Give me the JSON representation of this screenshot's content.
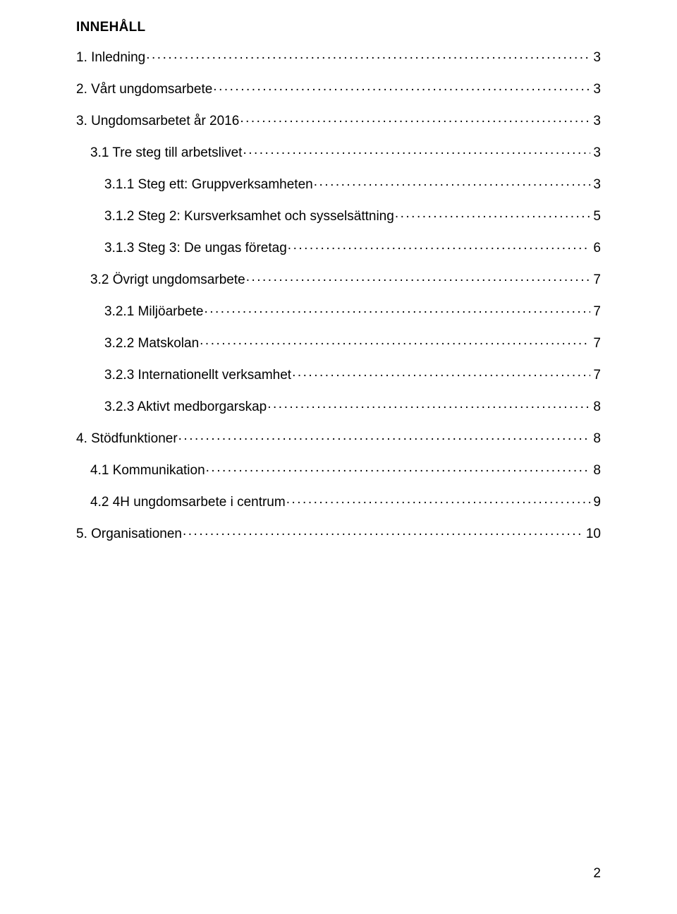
{
  "heading": "INNEHÅLL",
  "toc": [
    {
      "label": "1. Inledning",
      "page": "3",
      "indent": 0
    },
    {
      "label": "2. Vårt ungdomsarbete",
      "page": "3",
      "indent": 0
    },
    {
      "label": "3. Ungdomsarbetet år 2016",
      "page": "3",
      "indent": 0
    },
    {
      "label": "3.1 Tre steg till arbetslivet",
      "page": "3",
      "indent": 1
    },
    {
      "label": "3.1.1 Steg ett: Gruppverksamheten",
      "page": "3",
      "indent": 2
    },
    {
      "label": "3.1.2 Steg 2: Kursverksamhet och sysselsättning",
      "page": "5",
      "indent": 2
    },
    {
      "label": "3.1.3 Steg 3: De ungas företag",
      "page": "6",
      "indent": 2
    },
    {
      "label": "3.2 Övrigt ungdomsarbete",
      "page": "7",
      "indent": 1
    },
    {
      "label": "3.2.1 Miljöarbete",
      "page": "7",
      "indent": 2
    },
    {
      "label": "3.2.2 Matskolan",
      "page": "7",
      "indent": 2
    },
    {
      "label": "3.2.3 Internationellt verksamhet",
      "page": "7",
      "indent": 2
    },
    {
      "label": "3.2.3 Aktivt medborgarskap",
      "page": "8",
      "indent": 2
    },
    {
      "label": "4. Stödfunktioner",
      "page": "8",
      "indent": 0
    },
    {
      "label": "4.1 Kommunikation",
      "page": "8",
      "indent": 1
    },
    {
      "label": "4.2 4H ungdomsarbete i centrum",
      "page": "9",
      "indent": 1
    },
    {
      "label": "5. Organisationen",
      "page": "10",
      "indent": 0
    }
  ],
  "footerPage": "2",
  "colors": {
    "text": "#000000",
    "background": "#ffffff"
  },
  "typography": {
    "body_font": "Arial",
    "body_size_pt": 14,
    "heading_weight": "bold",
    "heading_smallcaps": true
  }
}
